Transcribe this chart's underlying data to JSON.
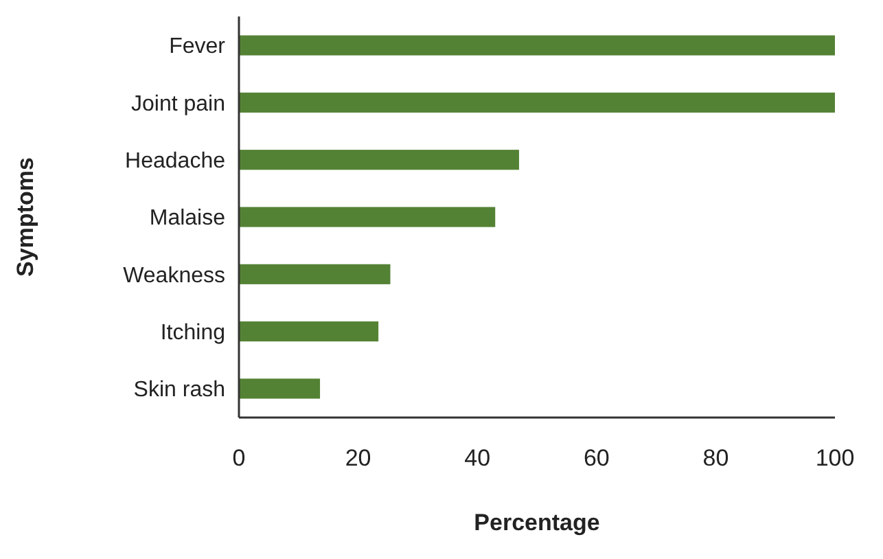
{
  "chart_data": {
    "type": "bar",
    "orientation": "horizontal",
    "xlabel": "Percentage",
    "ylabel": "Symptoms",
    "categories": [
      "Fever",
      "Joint pain",
      "Headache",
      "Malaise",
      "Weakness",
      "Itching",
      "Skin rash"
    ],
    "values": [
      100,
      100,
      47,
      43,
      25.4,
      23.4,
      13.6
    ],
    "color": "#548235",
    "xlim": [
      0,
      100
    ],
    "xticks": [
      0,
      20,
      40,
      60,
      80,
      100
    ],
    "grid": false
  }
}
